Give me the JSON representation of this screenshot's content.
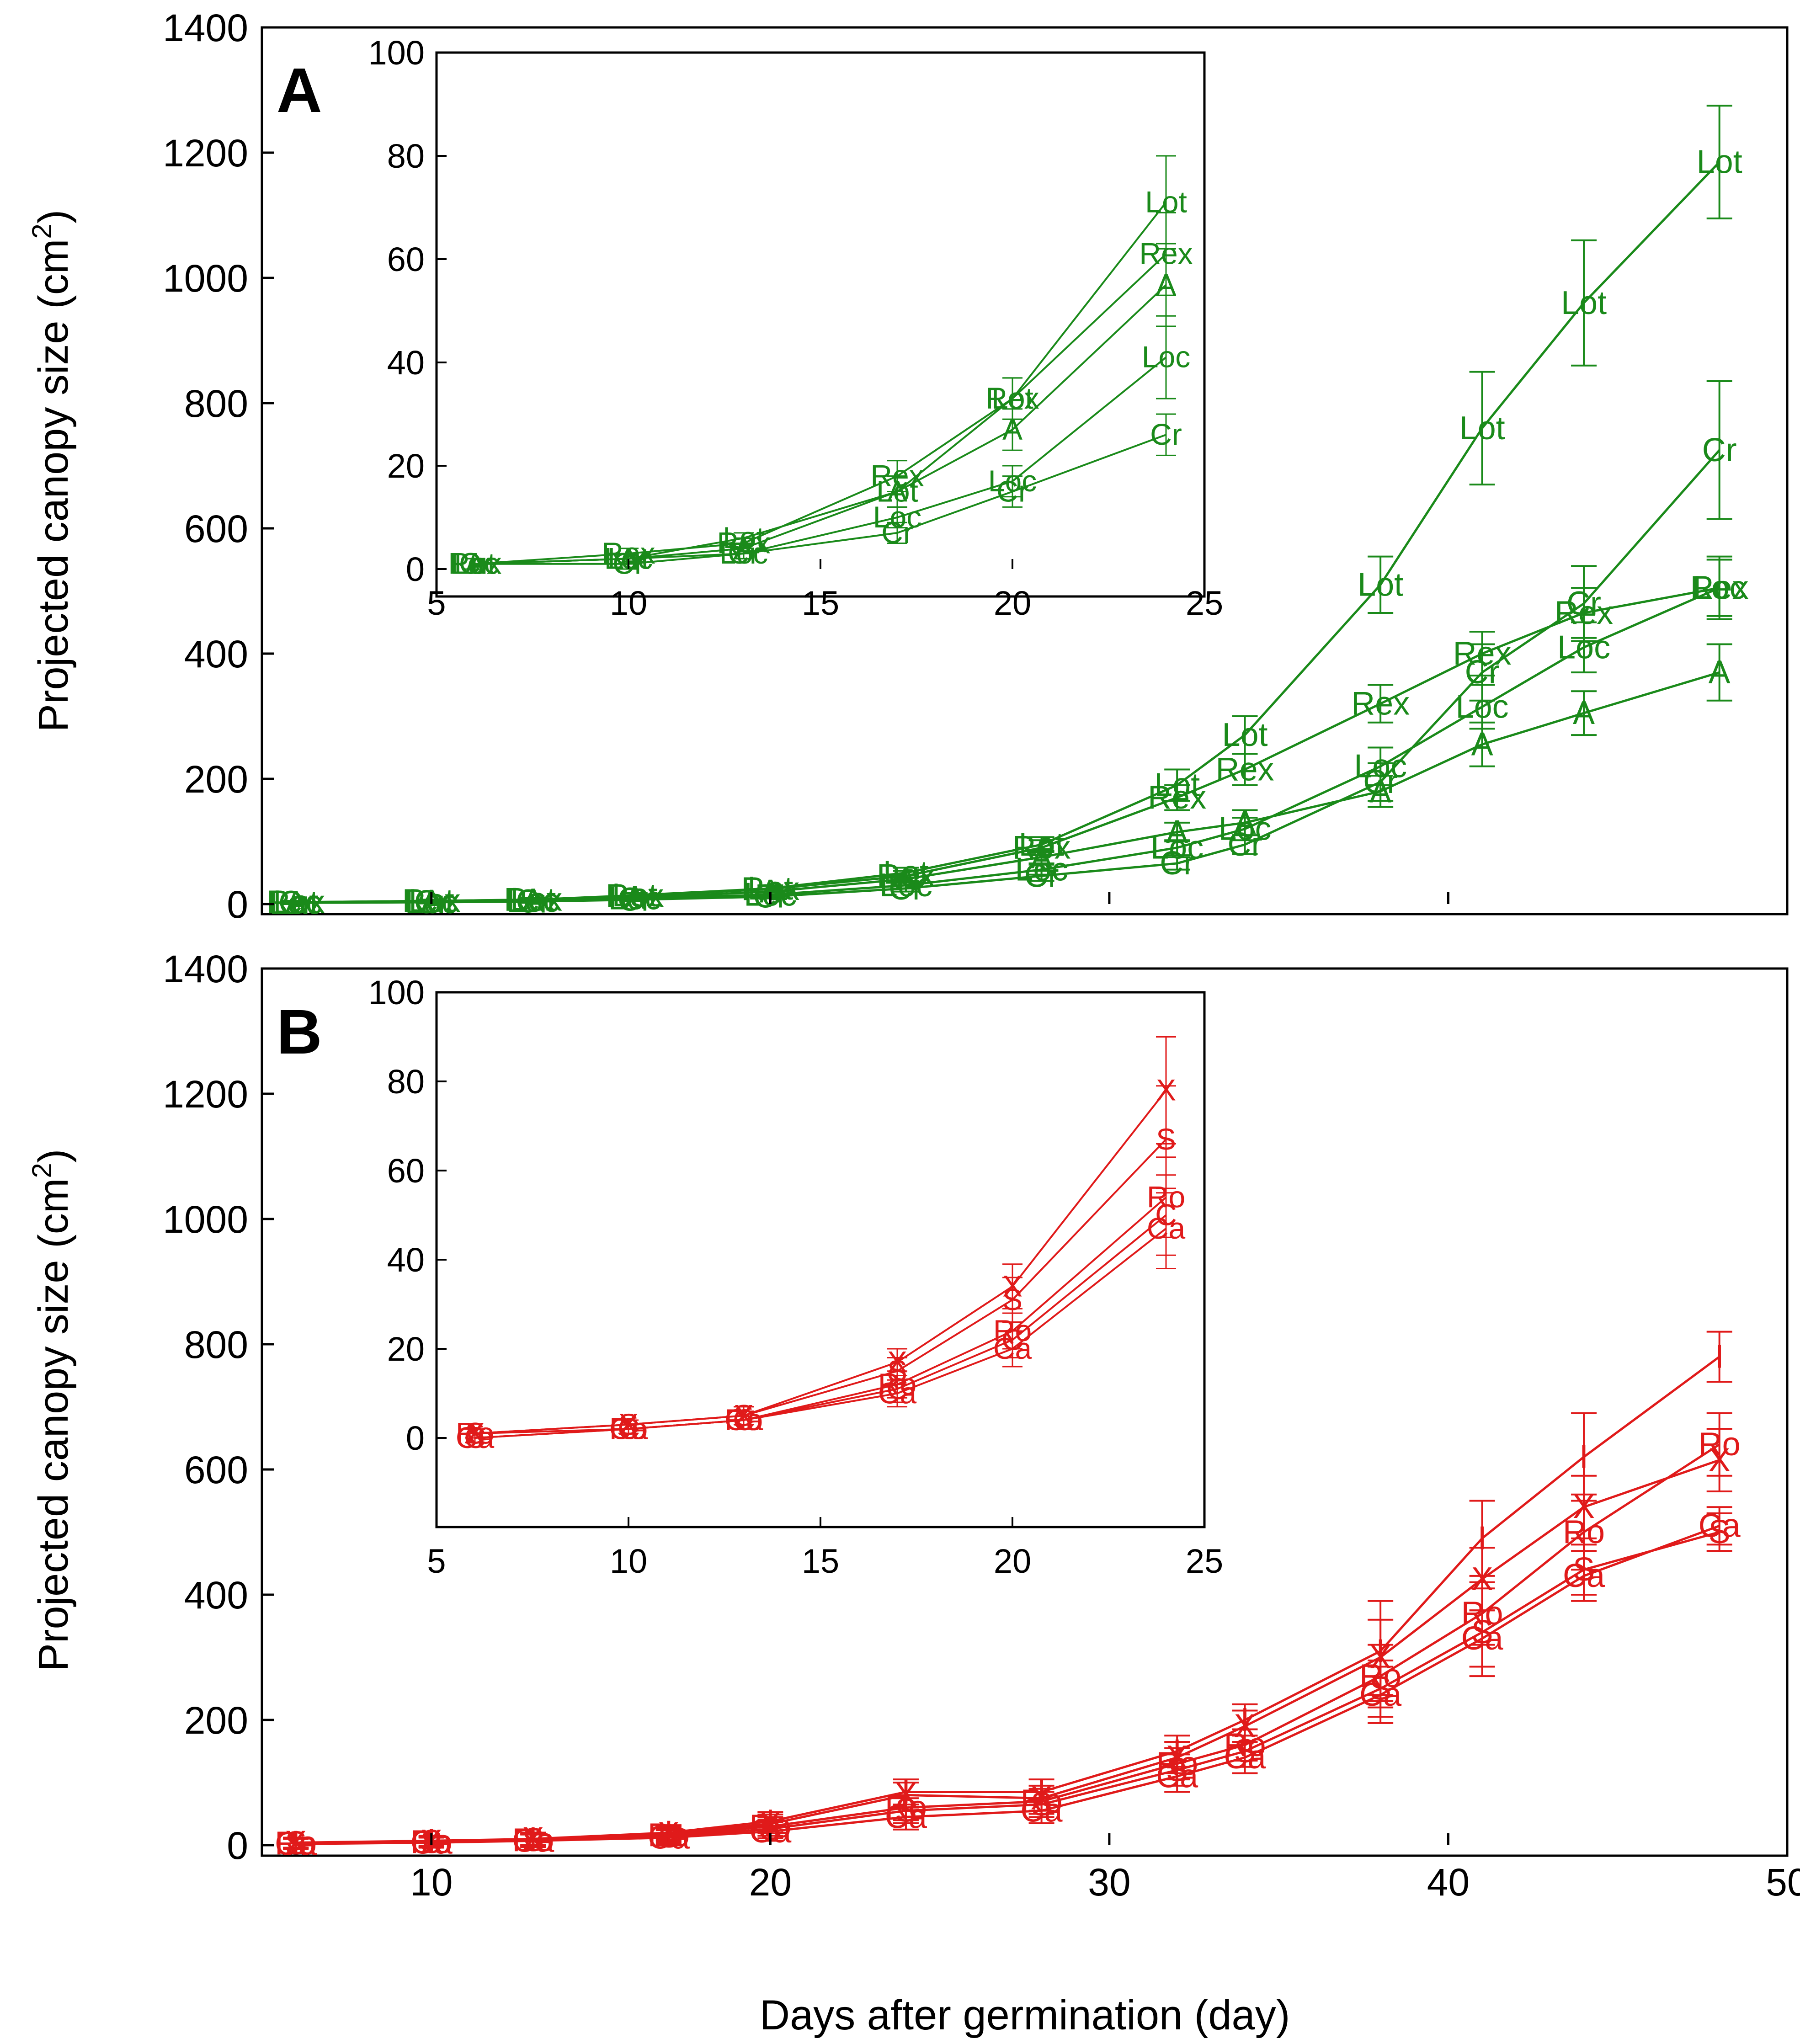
{
  "xlabel": "Days after germination (day)",
  "ylabel_main": "Projected canopy size (cm",
  "ylabel_sup": "2",
  "ylabel_close": ")",
  "x_ticks": [
    "10",
    "20",
    "30",
    "40",
    "50"
  ],
  "y_ticks": [
    "0",
    "200",
    "400",
    "600",
    "800",
    "1000",
    "1200",
    "1400"
  ],
  "inset_x_ticks": [
    "5",
    "10",
    "15",
    "20",
    "25"
  ],
  "inset_y_ticks": [
    "0",
    "20",
    "40",
    "60",
    "80",
    "100"
  ],
  "chart_data": [
    {
      "type": "line",
      "panel": "A",
      "color": "#1a8a1a",
      "xlabel": "Days after germination (day)",
      "ylabel": "Projected canopy size (cm2)",
      "xlim": [
        5,
        50
      ],
      "ylim": [
        0,
        1400
      ],
      "x": [
        6,
        10,
        13,
        16,
        20,
        24,
        28,
        32,
        34,
        38,
        41,
        44,
        48
      ],
      "series": [
        {
          "name": "Lot",
          "values": [
            3,
            5,
            7,
            14,
            25,
            50,
            95,
            190,
            270,
            510,
            760,
            960,
            1185
          ],
          "err": [
            2,
            2,
            3,
            4,
            5,
            8,
            12,
            25,
            30,
            45,
            90,
            100,
            90
          ]
        },
        {
          "name": "Rex",
          "values": [
            3,
            5,
            7,
            13,
            24,
            45,
            90,
            170,
            215,
            320,
            400,
            465,
            505
          ],
          "err": [
            2,
            2,
            3,
            4,
            5,
            8,
            12,
            20,
            25,
            30,
            35,
            40,
            45
          ]
        },
        {
          "name": "A",
          "values": [
            2,
            4,
            6,
            10,
            20,
            40,
            75,
            115,
            130,
            180,
            255,
            305,
            370
          ],
          "err": [
            2,
            2,
            3,
            3,
            4,
            6,
            10,
            15,
            20,
            25,
            35,
            35,
            45
          ]
        },
        {
          "name": "Loc",
          "values": [
            2,
            3,
            5,
            9,
            15,
            30,
            55,
            90,
            120,
            220,
            315,
            410,
            505
          ],
          "err": [
            1,
            2,
            2,
            3,
            4,
            5,
            8,
            12,
            18,
            30,
            35,
            40,
            50
          ]
        },
        {
          "name": "Cr",
          "values": [
            2,
            3,
            4,
            7,
            12,
            25,
            45,
            65,
            95,
            195,
            370,
            480,
            725
          ],
          "err": [
            1,
            1,
            2,
            2,
            3,
            5,
            8,
            10,
            15,
            30,
            45,
            60,
            110
          ]
        }
      ],
      "inset": {
        "xlim": [
          5,
          25
        ],
        "ylim": [
          0,
          100
        ],
        "x": [
          6,
          10,
          13,
          17,
          20,
          24
        ],
        "series": [
          {
            "name": "Lot",
            "values": [
              1,
              2,
              6,
              15,
              33,
              71
            ],
            "err": [
              1,
              1,
              1,
              3,
              4,
              9
            ]
          },
          {
            "name": "Rex",
            "values": [
              1,
              3,
              5,
              18,
              33,
              61
            ],
            "err": [
              1,
              1,
              1,
              3,
              4,
              8
            ]
          },
          {
            "name": "A",
            "values": [
              1,
              2,
              4,
              15,
              27,
              55
            ],
            "err": [
              1,
              1,
              1,
              3,
              4,
              8
            ]
          },
          {
            "name": "Loc",
            "values": [
              1,
              2,
              3,
              10,
              17,
              41
            ],
            "err": [
              1,
              1,
              1,
              2,
              3,
              8
            ]
          },
          {
            "name": "Cr",
            "values": [
              1,
              1,
              3,
              7,
              15,
              26
            ],
            "err": [
              1,
              1,
              1,
              2,
              3,
              4
            ]
          }
        ]
      }
    },
    {
      "type": "line",
      "panel": "B",
      "color": "#e01a1a",
      "xlabel": "Days after germination (day)",
      "ylabel": "Projected canopy size (cm2)",
      "xlim": [
        5,
        50
      ],
      "ylim": [
        0,
        1400
      ],
      "x": [
        6,
        10,
        13,
        17,
        20,
        24,
        28,
        32,
        34,
        38,
        41,
        44,
        48
      ],
      "series": [
        {
          "name": "I",
          "values": [
            4,
            7,
            10,
            20,
            38,
            85,
            85,
            150,
            200,
            310,
            490,
            620,
            780
          ],
          "err": [
            8,
            8,
            10,
            12,
            15,
            20,
            20,
            25,
            25,
            80,
            60,
            70,
            40
          ]
        },
        {
          "name": "X",
          "values": [
            4,
            6,
            10,
            18,
            34,
            80,
            75,
            140,
            190,
            300,
            425,
            540,
            615
          ],
          "err": [
            8,
            8,
            10,
            12,
            15,
            20,
            20,
            25,
            25,
            60,
            50,
            50,
            50
          ]
        },
        {
          "name": "Ro",
          "values": [
            3,
            5,
            8,
            16,
            30,
            60,
            70,
            130,
            160,
            270,
            370,
            500,
            640
          ],
          "err": [
            8,
            8,
            10,
            12,
            15,
            20,
            20,
            25,
            25,
            50,
            50,
            60,
            50
          ]
        },
        {
          "name": "Ca",
          "values": [
            2,
            4,
            7,
            12,
            22,
            45,
            55,
            110,
            140,
            240,
            330,
            430,
            510
          ],
          "err": [
            8,
            8,
            10,
            12,
            15,
            20,
            20,
            25,
            25,
            45,
            45,
            40,
            30
          ]
        },
        {
          "name": "S",
          "values": [
            3,
            5,
            8,
            14,
            26,
            55,
            65,
            120,
            150,
            250,
            340,
            440,
            500
          ],
          "err": [
            8,
            8,
            10,
            12,
            15,
            20,
            20,
            25,
            25,
            45,
            70,
            40,
            30
          ]
        }
      ],
      "inset": {
        "xlim": [
          5,
          25
        ],
        "ylim": [
          -20,
          100
        ],
        "x": [
          6,
          10,
          13,
          17,
          20,
          24
        ],
        "series": [
          {
            "name": "X",
            "values": [
              1,
              3,
              5,
              17,
              34,
              78
            ],
            "err": [
              1,
              1,
              2,
              3,
              5,
              12
            ]
          },
          {
            "name": "S",
            "values": [
              1,
              3,
              5,
              15,
              31,
              67
            ],
            "err": [
              1,
              1,
              2,
              3,
              5,
              12
            ]
          },
          {
            "name": "Ro",
            "values": [
              1,
              2,
              4,
              12,
              24,
              54
            ],
            "err": [
              1,
              1,
              2,
              3,
              4,
              9
            ]
          },
          {
            "name": "Ca",
            "values": [
              0,
              2,
              4,
              10,
              20,
              47
            ],
            "err": [
              1,
              1,
              2,
              3,
              4,
              9
            ]
          },
          {
            "name": "C",
            "values": [
              0,
              2,
              4,
              11,
              22,
              50
            ],
            "err": [
              1,
              1,
              2,
              3,
              4,
              9
            ]
          }
        ]
      }
    }
  ],
  "panels": [
    {
      "label": "A"
    },
    {
      "label": "B"
    }
  ]
}
